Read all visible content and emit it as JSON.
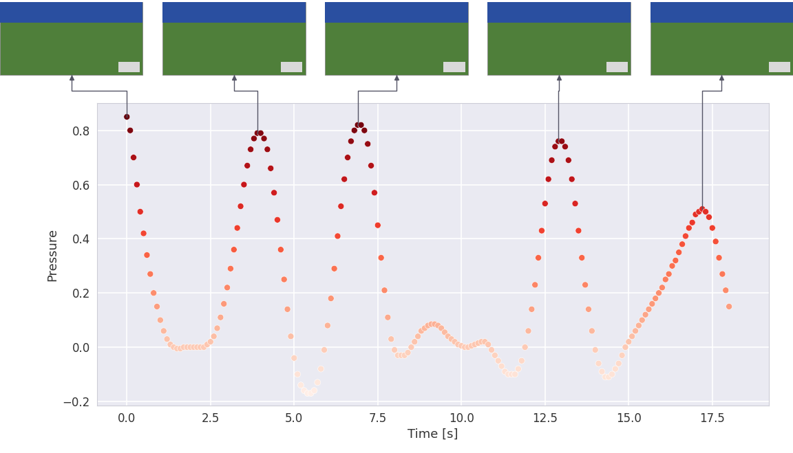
{
  "chart_data": {
    "type": "scatter",
    "xlabel": "Time [s]",
    "ylabel": "Pressure",
    "color": "Reds",
    "grid": true,
    "marker": "o",
    "x": [
      0.0,
      0.1,
      0.2,
      0.3,
      0.4,
      0.5,
      0.6,
      0.7,
      0.8,
      0.9,
      1.0,
      1.1,
      1.2,
      1.3,
      1.4,
      1.5,
      1.6,
      1.7,
      1.8,
      1.9,
      2.0,
      2.1,
      2.2,
      2.3,
      2.4,
      2.5,
      2.6,
      2.7,
      2.8,
      2.9,
      3.0,
      3.1,
      3.2,
      3.3,
      3.4,
      3.5,
      3.6,
      3.7,
      3.8,
      3.9,
      4.0,
      4.1,
      4.2,
      4.3,
      4.4,
      4.5,
      4.6,
      4.7,
      4.8,
      4.9,
      5.0,
      5.1,
      5.2,
      5.3,
      5.4,
      5.5,
      5.6,
      5.7,
      5.8,
      5.9,
      6.0,
      6.1,
      6.2,
      6.3,
      6.4,
      6.5,
      6.6,
      6.7,
      6.8,
      6.9,
      7.0,
      7.1,
      7.2,
      7.3,
      7.4,
      7.5,
      7.6,
      7.7,
      7.8,
      7.9,
      8.0,
      8.1,
      8.2,
      8.3,
      8.4,
      8.5,
      8.6,
      8.7,
      8.8,
      8.9,
      9.0,
      9.1,
      9.2,
      9.3,
      9.4,
      9.5,
      9.6,
      9.7,
      9.8,
      9.9,
      10.0,
      10.1,
      10.2,
      10.3,
      10.4,
      10.5,
      10.6,
      10.7,
      10.8,
      10.9,
      11.0,
      11.1,
      11.2,
      11.3,
      11.4,
      11.5,
      11.6,
      11.7,
      11.8,
      11.9,
      12.0,
      12.1,
      12.2,
      12.3,
      12.4,
      12.5,
      12.6,
      12.7,
      12.8,
      12.9,
      13.0,
      13.1,
      13.2,
      13.3,
      13.4,
      13.5,
      13.6,
      13.7,
      13.8,
      13.9,
      14.0,
      14.1,
      14.2,
      14.3,
      14.4,
      14.5,
      14.6,
      14.7,
      14.8,
      14.9,
      15.0,
      15.1,
      15.2,
      15.3,
      15.4,
      15.5,
      15.6,
      15.7,
      15.8,
      15.9,
      16.0,
      16.1,
      16.2,
      16.3,
      16.4,
      16.5,
      16.6,
      16.7,
      16.8,
      16.9,
      17.0,
      17.1,
      17.2,
      17.3,
      17.4,
      17.5,
      17.6,
      17.7,
      17.8,
      17.9,
      18.0
    ],
    "values": [
      0.85,
      0.8,
      0.7,
      0.6,
      0.5,
      0.42,
      0.34,
      0.27,
      0.2,
      0.15,
      0.1,
      0.06,
      0.03,
      0.01,
      0.0,
      -0.005,
      -0.005,
      0.0,
      0.0,
      0.0,
      0.0,
      0.0,
      0.0,
      0.0,
      0.01,
      0.02,
      0.04,
      0.07,
      0.11,
      0.16,
      0.22,
      0.29,
      0.36,
      0.44,
      0.52,
      0.6,
      0.67,
      0.73,
      0.77,
      0.79,
      0.79,
      0.77,
      0.73,
      0.66,
      0.57,
      0.47,
      0.36,
      0.25,
      0.14,
      0.04,
      -0.04,
      -0.1,
      -0.14,
      -0.16,
      -0.17,
      -0.17,
      -0.16,
      -0.13,
      -0.08,
      -0.01,
      0.08,
      0.18,
      0.29,
      0.41,
      0.52,
      0.62,
      0.7,
      0.76,
      0.8,
      0.82,
      0.82,
      0.8,
      0.75,
      0.67,
      0.57,
      0.45,
      0.33,
      0.21,
      0.11,
      0.03,
      -0.01,
      -0.03,
      -0.03,
      -0.03,
      -0.02,
      0.0,
      0.02,
      0.04,
      0.06,
      0.07,
      0.08,
      0.085,
      0.085,
      0.08,
      0.07,
      0.055,
      0.04,
      0.03,
      0.02,
      0.01,
      0.005,
      0.0,
      0.0,
      0.005,
      0.01,
      0.015,
      0.02,
      0.02,
      0.01,
      -0.01,
      -0.03,
      -0.05,
      -0.07,
      -0.09,
      -0.1,
      -0.1,
      -0.1,
      -0.08,
      -0.05,
      0.0,
      0.06,
      0.14,
      0.23,
      0.33,
      0.43,
      0.53,
      0.62,
      0.69,
      0.74,
      0.76,
      0.76,
      0.74,
      0.69,
      0.62,
      0.53,
      0.43,
      0.33,
      0.23,
      0.14,
      0.06,
      -0.01,
      -0.06,
      -0.09,
      -0.11,
      -0.11,
      -0.1,
      -0.08,
      -0.06,
      -0.03,
      0.0,
      0.02,
      0.04,
      0.06,
      0.08,
      0.1,
      0.12,
      0.14,
      0.16,
      0.18,
      0.2,
      0.22,
      0.25,
      0.27,
      0.3,
      0.32,
      0.35,
      0.38,
      0.41,
      0.44,
      0.46,
      0.49,
      0.5,
      0.51,
      0.5,
      0.48,
      0.44,
      0.39,
      0.33,
      0.27,
      0.21,
      0.15
    ],
    "xlim": [
      -0.9,
      19.2
    ],
    "ylim": [
      -0.215,
      0.9
    ],
    "xticks": [
      {
        "value": 0,
        "label": "0.0"
      },
      {
        "value": 2.5,
        "label": "2.5"
      },
      {
        "value": 5,
        "label": "5.0"
      },
      {
        "value": 7.5,
        "label": "7.5"
      },
      {
        "value": 10,
        "label": "10.0"
      },
      {
        "value": 12.5,
        "label": "12.5"
      },
      {
        "value": 15,
        "label": "15.0"
      },
      {
        "value": 17.5,
        "label": "17.5"
      }
    ],
    "yticks": [
      {
        "value": -0.2,
        "label": "−0.2"
      },
      {
        "value": 0,
        "label": "0.0"
      },
      {
        "value": 0.2,
        "label": "0.2"
      },
      {
        "value": 0.4,
        "label": "0.4"
      },
      {
        "value": 0.6,
        "label": "0.6"
      },
      {
        "value": 0.8,
        "label": "0.8"
      }
    ]
  }
}
